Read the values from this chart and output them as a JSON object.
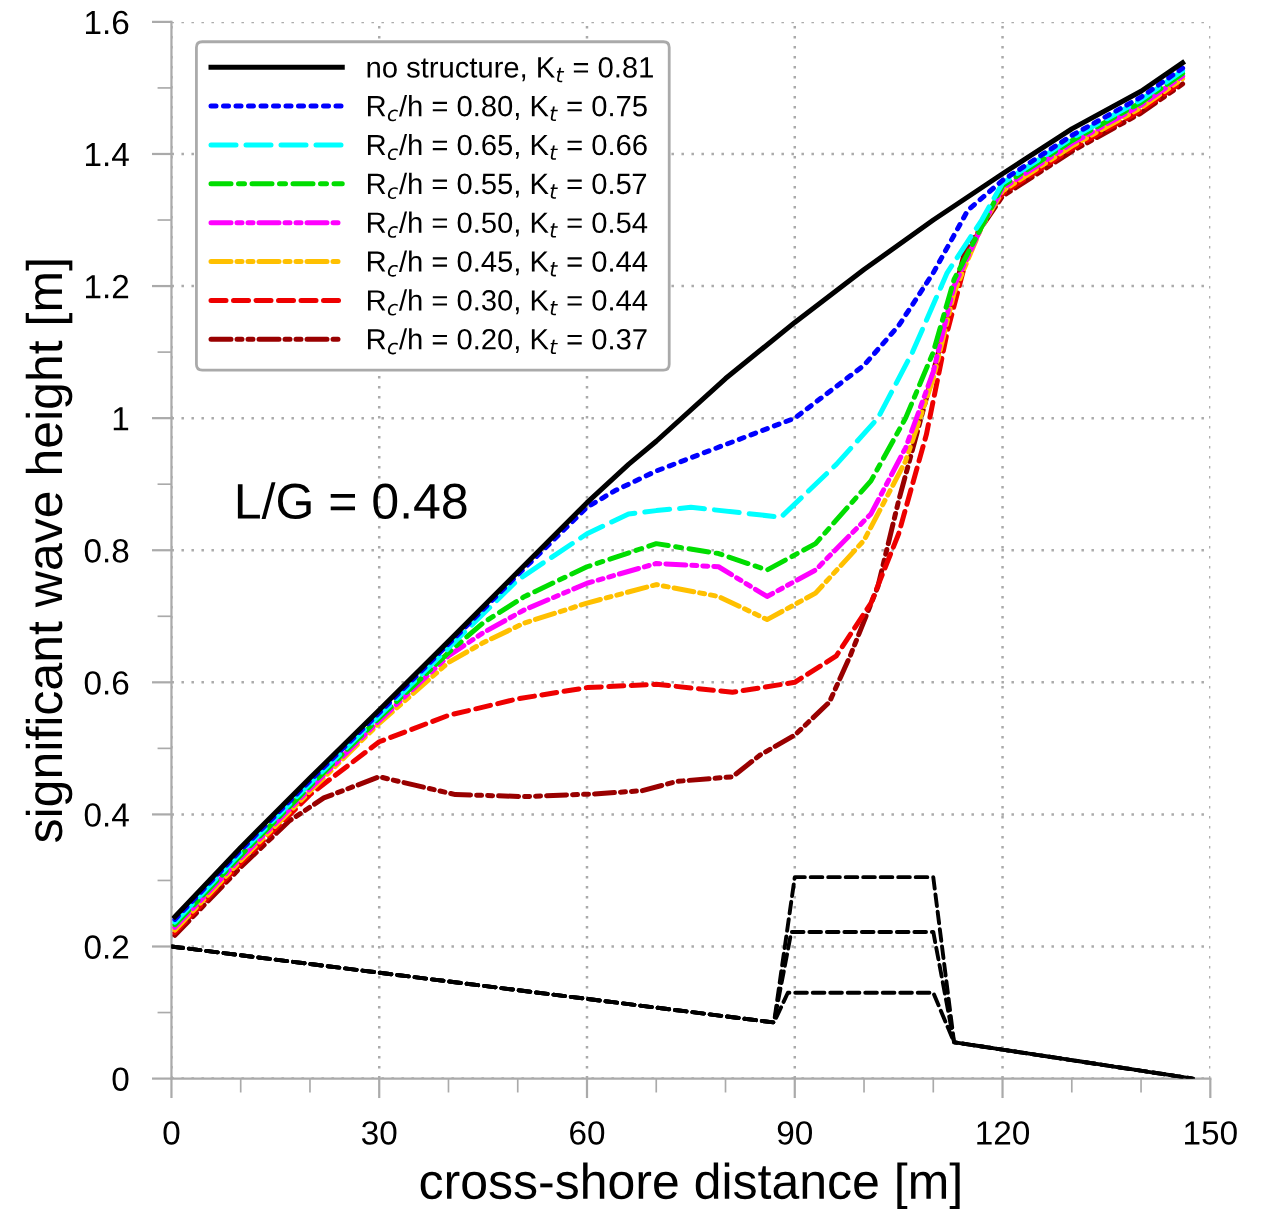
{
  "chart_data": {
    "type": "line",
    "xlabel": "cross-shore distance [m]",
    "ylabel": "significant wave height [m]",
    "xlim": [
      0,
      150
    ],
    "ylim": [
      0,
      1.6
    ],
    "xticks": [
      0,
      30,
      60,
      90,
      120,
      150
    ],
    "yticks": [
      0,
      0.2,
      0.4,
      0.6,
      0.8,
      1,
      1.2,
      1.4,
      1.6
    ],
    "grid": true,
    "legend": "top left",
    "marker": "none",
    "annotations": [
      "L/G = 0.48"
    ],
    "series": [
      {
        "name": "no structure, K$_{t}$ = 0.81",
        "color": "#000000",
        "line_style": "solid",
        "x": [
          0.5,
          10,
          20,
          30,
          40,
          50,
          60,
          66,
          70,
          80,
          90,
          100,
          110,
          120,
          130,
          140,
          146
        ],
        "values": [
          0.245,
          0.35,
          0.455,
          0.558,
          0.662,
          0.767,
          0.872,
          0.93,
          0.965,
          1.06,
          1.145,
          1.225,
          1.3,
          1.37,
          1.438,
          1.495,
          1.538
        ]
      },
      {
        "name": "R$_{c}$/h = 0.80, K$_{t}$ = 0.75",
        "color": "#0000ff",
        "line_style": "dotted",
        "x": [
          0.5,
          10,
          20,
          30,
          40,
          50,
          60,
          64,
          70,
          80,
          90,
          100,
          105,
          110,
          115,
          120,
          130,
          140,
          146
        ],
        "values": [
          0.241,
          0.346,
          0.451,
          0.554,
          0.658,
          0.763,
          0.865,
          0.89,
          0.92,
          0.96,
          1.0,
          1.08,
          1.14,
          1.22,
          1.315,
          1.36,
          1.428,
          1.486,
          1.53
        ]
      },
      {
        "name": "R$_{c}$/h = 0.65, K$_{t}$ = 0.66",
        "color": "#00ffff",
        "line_style": "longdash",
        "x": [
          0.5,
          10,
          20,
          30,
          40,
          50,
          55,
          60,
          66,
          70,
          75,
          82,
          88,
          96,
          102,
          107,
          112,
          117,
          120,
          130,
          140,
          146
        ],
        "values": [
          0.237,
          0.342,
          0.447,
          0.55,
          0.652,
          0.755,
          0.79,
          0.825,
          0.855,
          0.86,
          0.865,
          0.857,
          0.85,
          0.93,
          1.0,
          1.1,
          1.22,
          1.3,
          1.356,
          1.424,
          1.482,
          1.526
        ]
      },
      {
        "name": "R$_{c}$/h = 0.55, K$_{t}$ = 0.57",
        "color": "#00dd00",
        "line_style": "dashdot",
        "x": [
          0.5,
          10,
          20,
          30,
          40,
          45,
          51,
          60,
          70,
          79,
          86,
          93,
          101,
          106,
          110,
          113,
          117,
          120,
          130,
          140,
          146
        ],
        "values": [
          0.233,
          0.338,
          0.443,
          0.546,
          0.645,
          0.69,
          0.73,
          0.775,
          0.81,
          0.795,
          0.77,
          0.81,
          0.905,
          1.0,
          1.1,
          1.21,
          1.29,
          1.352,
          1.42,
          1.478,
          1.522
        ]
      },
      {
        "name": "R$_{c}$/h = 0.50, K$_{t}$ = 0.54",
        "color": "#ff00ff",
        "line_style": "dashdotdot",
        "x": [
          0.5,
          10,
          20,
          30,
          40,
          45,
          51,
          60,
          70,
          79,
          86,
          93,
          101,
          106,
          110,
          113,
          117,
          120,
          130,
          140,
          146
        ],
        "values": [
          0.229,
          0.334,
          0.439,
          0.542,
          0.64,
          0.675,
          0.71,
          0.75,
          0.78,
          0.775,
          0.73,
          0.77,
          0.855,
          0.955,
          1.07,
          1.2,
          1.29,
          1.348,
          1.416,
          1.474,
          1.518
        ]
      },
      {
        "name": "R$_{c}$/h = 0.45, K$_{t}$ = 0.44",
        "color": "#ffc000",
        "line_style": "dashdotdot",
        "x": [
          0.5,
          10,
          20,
          30,
          40,
          45,
          51,
          60,
          70,
          79,
          86,
          93,
          100,
          106,
          110,
          113,
          117,
          120,
          130,
          140,
          146
        ],
        "values": [
          0.225,
          0.33,
          0.435,
          0.538,
          0.63,
          0.66,
          0.69,
          0.72,
          0.748,
          0.73,
          0.695,
          0.735,
          0.815,
          0.935,
          1.06,
          1.19,
          1.29,
          1.344,
          1.412,
          1.47,
          1.514
        ]
      },
      {
        "name": "R$_{c}$/h = 0.30, K$_{t}$ = 0.44",
        "color": "#ee0000",
        "line_style": "dashed",
        "x": [
          0.5,
          10,
          20,
          30,
          40,
          50,
          60,
          70,
          81,
          90,
          96,
          101,
          105,
          109,
          112,
          115,
          118,
          120,
          130,
          140,
          146
        ],
        "values": [
          0.221,
          0.326,
          0.43,
          0.51,
          0.55,
          0.575,
          0.592,
          0.597,
          0.585,
          0.6,
          0.64,
          0.72,
          0.825,
          0.975,
          1.13,
          1.25,
          1.31,
          1.34,
          1.408,
          1.466,
          1.51
        ]
      },
      {
        "name": "R$_{c}$/h = 0.20, K$_{t}$ = 0.37",
        "color": "#990000",
        "line_style": "dashdotdot",
        "x": [
          0.5,
          10,
          17,
          22,
          30,
          41,
          51,
          61,
          68,
          73,
          81,
          85,
          90,
          95,
          98,
          102,
          105,
          109,
          112,
          114.5,
          117,
          120,
          130,
          140,
          146
        ],
        "values": [
          0.217,
          0.32,
          0.39,
          0.425,
          0.457,
          0.43,
          0.427,
          0.431,
          0.436,
          0.45,
          0.457,
          0.49,
          0.52,
          0.57,
          0.64,
          0.745,
          0.875,
          1.03,
          1.15,
          1.25,
          1.29,
          1.336,
          1.404,
          1.462,
          1.506
        ]
      },
      {
        "color": "#000000",
        "line_style": "dashed",
        "x": [
          0,
          87,
          90,
          110,
          113,
          147.5
        ],
        "values": [
          0.2,
          0.085,
          0.305,
          0.305,
          0.055,
          0.0
        ]
      },
      {
        "color": "#000000",
        "line_style": "dashed",
        "x": [
          0,
          87,
          89.5,
          110,
          113,
          147.5
        ],
        "values": [
          0.2,
          0.085,
          0.222,
          0.222,
          0.055,
          0.0
        ]
      },
      {
        "color": "#000000",
        "line_style": "dashed",
        "x": [
          0,
          87,
          89,
          110,
          113,
          147.5
        ],
        "values": [
          0.2,
          0.085,
          0.13,
          0.13,
          0.055,
          0.0
        ]
      }
    ]
  }
}
